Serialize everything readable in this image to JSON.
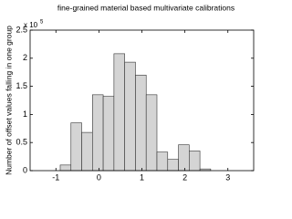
{
  "chart_data": {
    "type": "histogram",
    "title": "fine-grained material based multivariate calibrations",
    "ylabel": "Number of offset values falling in one group",
    "y_scale_label": "x 10",
    "y_scale_exponent": "5",
    "bins": [
      -0.9,
      -0.65,
      -0.4,
      -0.15,
      0.1,
      0.35,
      0.6,
      0.85,
      1.1,
      1.35,
      1.6,
      1.85,
      2.1,
      2.35,
      2.6
    ],
    "values": [
      0.1,
      0.85,
      0.68,
      1.35,
      1.32,
      2.08,
      1.93,
      1.7,
      1.35,
      0.33,
      0.2,
      0.46,
      0.35,
      0.03
    ],
    "color": "#d4d4d4",
    "edge_color": "#333333",
    "xlim": [
      -1.6,
      3.6
    ],
    "xticks": [
      -1,
      0,
      1,
      2,
      3
    ],
    "ylim": [
      0,
      2.5
    ],
    "yticks": [
      0,
      0.5,
      1,
      1.5,
      2,
      2.5
    ]
  }
}
